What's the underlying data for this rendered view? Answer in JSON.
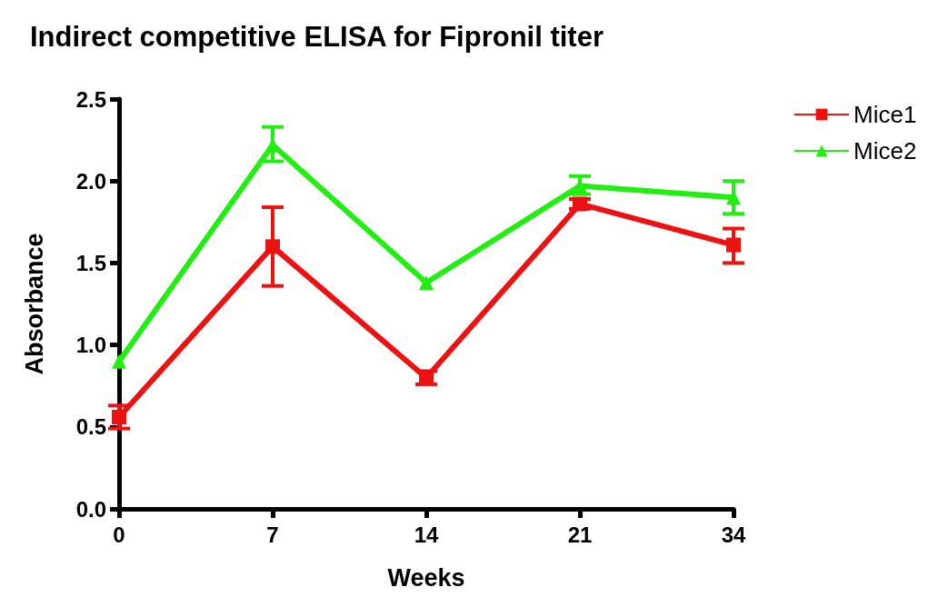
{
  "chart_data": {
    "type": "line",
    "title": "Indirect competitive ELISA for Fipronil titer",
    "xlabel": "Weeks",
    "ylabel": "Absorbance",
    "categories": [
      "0",
      "7",
      "14",
      "21",
      "34"
    ],
    "series": [
      {
        "name": "Mice1",
        "color": "#ee1111",
        "marker": "square",
        "values": [
          0.56,
          1.6,
          0.8,
          1.86,
          1.61
        ],
        "errors": [
          [
            0.49,
            0.63
          ],
          [
            1.36,
            1.84
          ],
          [
            0.76,
            0.84
          ],
          [
            1.83,
            1.89
          ],
          [
            1.5,
            1.71
          ]
        ]
      },
      {
        "name": "Mice2",
        "color": "#22ee11",
        "marker": "triangle",
        "values": [
          0.9,
          2.22,
          1.38,
          1.97,
          1.9
        ],
        "errors": [
          null,
          [
            2.12,
            2.33
          ],
          null,
          [
            1.92,
            2.03
          ],
          [
            1.8,
            2.0
          ]
        ]
      }
    ],
    "ylim": [
      0,
      2.5
    ],
    "yticks": [
      {
        "value": 0,
        "label": "0.0"
      },
      0.5,
      {
        "value": 1,
        "label": "1.0"
      },
      1.5,
      {
        "value": 2,
        "label": "2.0"
      },
      2.5
    ],
    "legend": "top right",
    "grid": false
  }
}
